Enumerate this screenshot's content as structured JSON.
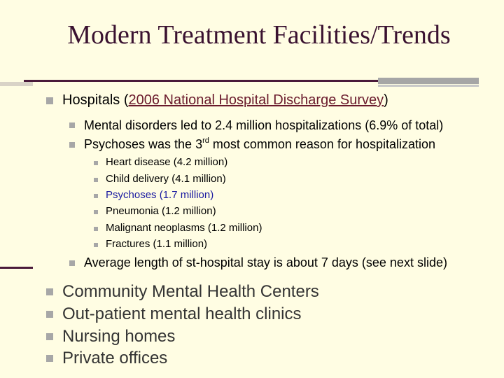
{
  "title": "Modern Treatment Facilities/Trends",
  "hospitals": {
    "prefix": "Hospitals (",
    "link": "2006 National Hospital Discharge Survey",
    "suffix": ")"
  },
  "sub_points": [
    "Mental disorders led to 2.4 million hospitalizations (6.9% of total)"
  ],
  "psychoses_point": {
    "before": "Psychoses was the 3",
    "sup": "rd",
    "after": " most common reason for hospitalization"
  },
  "reasons": [
    "Heart disease (4.2 million)",
    "Child delivery (4.1 million)",
    "Psychoses (1.7 million)",
    "Pneumonia (1.2 million)",
    "Malignant neoplasms (1.2 million)",
    "Fractures (1.1 million)"
  ],
  "stay_point": "Average length of st-hospital stay is about 7 days (see next slide)",
  "facilities": [
    "Community Mental Health Centers",
    "Out-patient mental health clinics",
    "Nursing homes",
    "Private offices"
  ],
  "colors": {
    "background": "#fffde3",
    "title": "#3a1230",
    "accent_rule": "#4a1a3a",
    "bullet": "#a7a7a7",
    "highlight": "#1a1aa0"
  }
}
